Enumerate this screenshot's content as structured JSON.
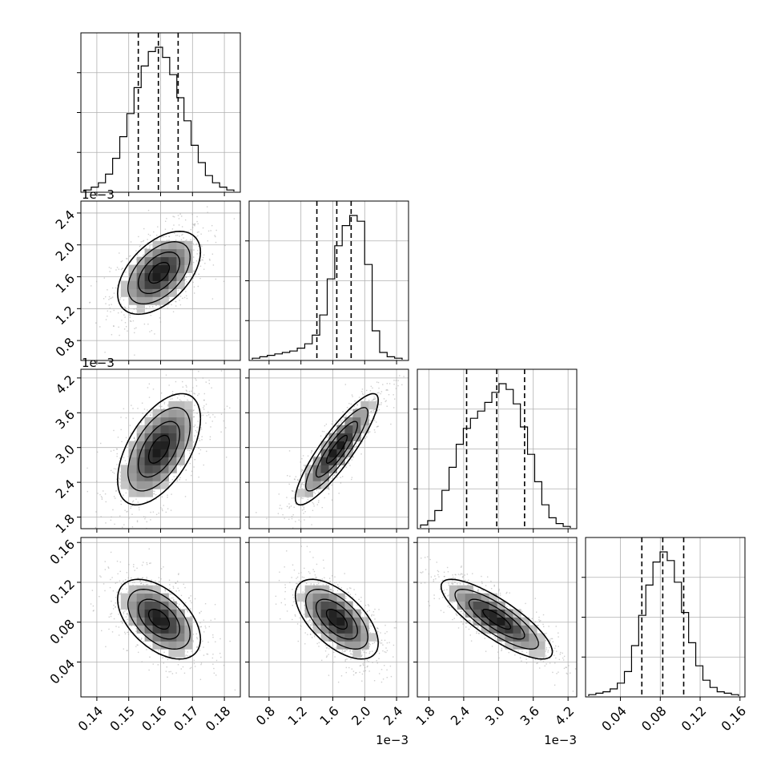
{
  "chart_data": {
    "type": "corner",
    "grid": true,
    "quantiles": [
      0.16,
      0.5,
      0.84
    ],
    "parameters": [
      {
        "range": [
          0.135,
          0.185
        ],
        "ticks": [
          0.14,
          0.15,
          0.16,
          0.17,
          0.18
        ],
        "tick_labels": [
          "0.14",
          "0.15",
          "0.16",
          "0.17",
          "0.18"
        ],
        "multiplier": "",
        "mean": 0.1595,
        "sd": 0.0065,
        "quantile_values": [
          0.153,
          0.1593,
          0.1655
        ]
      },
      {
        "range": [
          0.00055,
          0.00255
        ],
        "ticks": [
          0.0008,
          0.0012,
          0.0016,
          0.002,
          0.0024
        ],
        "tick_labels": [
          "0.8",
          "1.2",
          "1.6",
          "2.0",
          "2.4"
        ],
        "multiplier": "1e−3",
        "mean": 0.00165,
        "sd": 0.00026,
        "quantile_values": [
          0.0014,
          0.00165,
          0.00183
        ]
      },
      {
        "range": [
          0.0016,
          0.00435
        ],
        "ticks": [
          0.0018,
          0.0024,
          0.003,
          0.0036,
          0.0042
        ],
        "tick_labels": [
          "1.8",
          "2.4",
          "3.0",
          "3.6",
          "4.2"
        ],
        "multiplier": "1e−3",
        "mean": 0.00297,
        "sd": 0.00048,
        "quantile_values": [
          0.00245,
          0.00297,
          0.00345
        ]
      },
      {
        "range": [
          0.005,
          0.165
        ],
        "ticks": [
          0.04,
          0.08,
          0.12,
          0.16
        ],
        "tick_labels": [
          "0.04",
          "0.08",
          "0.12",
          "0.16"
        ],
        "multiplier": "",
        "mean": 0.083,
        "sd": 0.02,
        "quantile_values": [
          0.0615,
          0.0825,
          0.1035
        ]
      }
    ],
    "histograms": [
      [
        0.01,
        0.03,
        0.06,
        0.12,
        0.23,
        0.38,
        0.54,
        0.72,
        0.87,
        0.97,
        1.0,
        0.93,
        0.81,
        0.65,
        0.49,
        0.32,
        0.2,
        0.11,
        0.06,
        0.03,
        0.01
      ],
      [
        0.01,
        0.02,
        0.03,
        0.04,
        0.05,
        0.06,
        0.08,
        0.11,
        0.17,
        0.31,
        0.56,
        0.79,
        0.93,
        1.0,
        0.96,
        0.66,
        0.2,
        0.05,
        0.02,
        0.01
      ],
      [
        0.02,
        0.05,
        0.12,
        0.26,
        0.42,
        0.58,
        0.69,
        0.76,
        0.81,
        0.87,
        0.94,
        1.0,
        0.96,
        0.86,
        0.7,
        0.51,
        0.32,
        0.16,
        0.07,
        0.03,
        0.01
      ],
      [
        0.01,
        0.02,
        0.03,
        0.05,
        0.09,
        0.17,
        0.35,
        0.56,
        0.77,
        0.93,
        1.0,
        0.94,
        0.79,
        0.58,
        0.37,
        0.21,
        0.11,
        0.06,
        0.03,
        0.02,
        0.01
      ]
    ],
    "correlations": [
      [
        1.0,
        0.5,
        0.55,
        -0.5
      ],
      [
        0.5,
        1.0,
        0.88,
        -0.6
      ],
      [
        0.55,
        0.88,
        1.0,
        -0.82
      ],
      [
        -0.5,
        -0.6,
        -0.82,
        1.0
      ]
    ]
  }
}
